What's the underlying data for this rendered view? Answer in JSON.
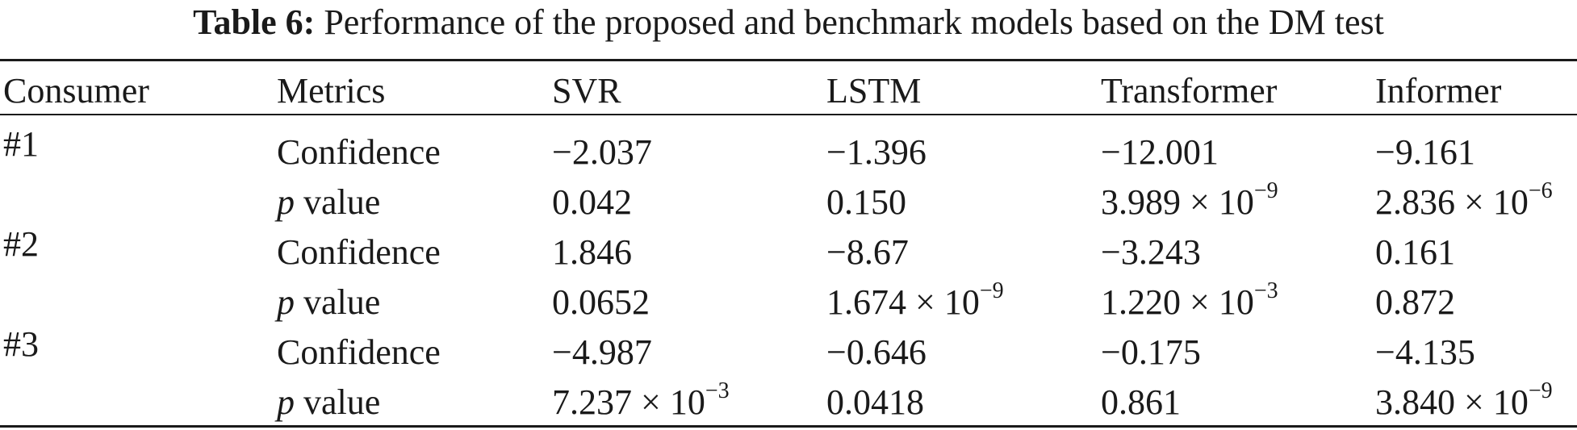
{
  "caption": {
    "label": "Table 6:",
    "text": "Performance of the proposed and benchmark models based on the DM test"
  },
  "table": {
    "headers": [
      "Consumer",
      "Metrics",
      "SVR",
      "LSTM",
      "Transformer",
      "Informer"
    ],
    "rows": [
      {
        "consumer": "#1",
        "confidence": {
          "label": "Confidence",
          "values": [
            "−2.037",
            "−1.396",
            "−12.001",
            "−9.161"
          ]
        },
        "pvalue": {
          "p": "p",
          "label": "value",
          "values": [
            {
              "base": "0.042",
              "exp": ""
            },
            {
              "base": "0.150",
              "exp": ""
            },
            {
              "base": "3.989 × 10",
              "exp": "−9"
            },
            {
              "base": "2.836 × 10",
              "exp": "−6"
            }
          ]
        }
      },
      {
        "consumer": "#2",
        "confidence": {
          "label": "Confidence",
          "values": [
            "1.846",
            "−8.67",
            "−3.243",
            "0.161"
          ]
        },
        "pvalue": {
          "p": "p",
          "label": "value",
          "values": [
            {
              "base": "0.0652",
              "exp": ""
            },
            {
              "base": "1.674 × 10",
              "exp": "−9"
            },
            {
              "base": "1.220 × 10",
              "exp": "−3"
            },
            {
              "base": "0.872",
              "exp": ""
            }
          ]
        }
      },
      {
        "consumer": "#3",
        "confidence": {
          "label": "Confidence",
          "values": [
            "−4.987",
            "−0.646",
            "−0.175",
            "−4.135"
          ]
        },
        "pvalue": {
          "p": "p",
          "label": "value",
          "values": [
            {
              "base": "7.237 × 10",
              "exp": "−3"
            },
            {
              "base": "0.0418",
              "exp": ""
            },
            {
              "base": "0.861",
              "exp": ""
            },
            {
              "base": "3.840 × 10",
              "exp": "−9"
            }
          ]
        }
      }
    ]
  }
}
